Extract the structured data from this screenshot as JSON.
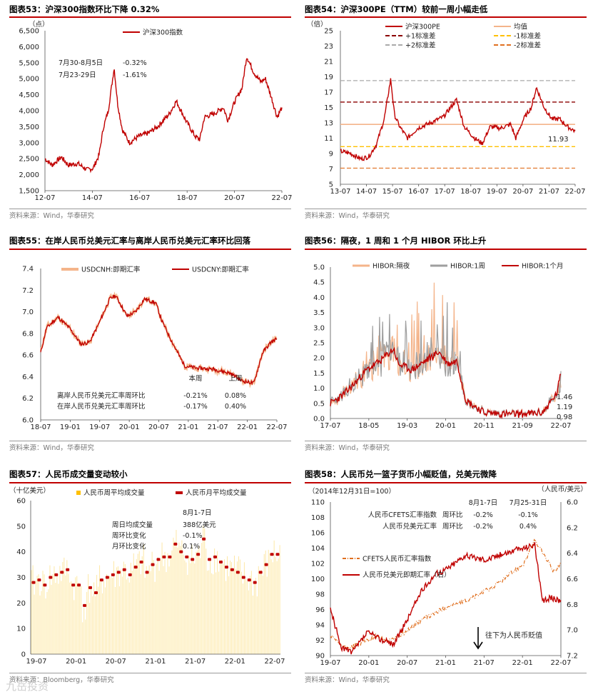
{
  "footer_watermark": "九岳投资",
  "colors": {
    "red": "#c00000",
    "peach": "#f4b48a",
    "grey": "#9e9e9e",
    "gold": "#ffc000",
    "darkred": "#8b0000",
    "orange": "#e07020"
  },
  "chart_data": [
    {
      "id": "c53",
      "type": "line",
      "title": "图表53：沪深300指数环比下降 0.32%",
      "source": "资料来源：Wind，华泰研究",
      "ylabel": "（点）",
      "ylim": [
        1500,
        6500
      ],
      "yticks": [
        "6,500",
        "6,000",
        "5,500",
        "5,000",
        "4,500",
        "4,000",
        "3,500",
        "3,000",
        "2,500",
        "2,000",
        "1,500"
      ],
      "xticks": [
        "12-07",
        "14-07",
        "16-07",
        "18-07",
        "20-07",
        "22-07"
      ],
      "legend": [
        "沪深300指数"
      ],
      "annotations": {
        "row1_label": "7月30-8月5日",
        "row1_value": "-0.32%",
        "row2_label": "7月23-29日",
        "row2_value": "-1.61%"
      },
      "series": [
        {
          "name": "沪深300指数",
          "x": [
            2012.5,
            2012.8,
            2013.2,
            2013.5,
            2013.9,
            2014.3,
            2014.55,
            2014.8,
            2015.0,
            2015.2,
            2015.45,
            2015.6,
            2015.8,
            2016.1,
            2016.5,
            2016.9,
            2017.3,
            2017.8,
            2018.1,
            2018.5,
            2018.9,
            2019.1,
            2019.3,
            2019.7,
            2020.1,
            2020.3,
            2020.6,
            2020.9,
            2021.1,
            2021.4,
            2021.7,
            2021.9,
            2022.2,
            2022.4,
            2022.6
          ],
          "values": [
            2500,
            2300,
            2550,
            2300,
            2350,
            2150,
            2200,
            2600,
            3500,
            4000,
            5350,
            4200,
            3400,
            3000,
            3200,
            3300,
            3500,
            3900,
            4300,
            3700,
            3200,
            3100,
            3800,
            3900,
            4100,
            3700,
            4300,
            4700,
            5700,
            5200,
            4900,
            5000,
            4300,
            3800,
            4100
          ]
        }
      ]
    },
    {
      "id": "c54",
      "type": "line",
      "title": "图表54：沪深300PE（TTM）较前一周小幅走低",
      "source": "资料来源：Wind，华泰研究",
      "ylabel": "（倍）",
      "ylim": [
        5,
        25
      ],
      "yticks": [
        "25",
        "23",
        "21",
        "19",
        "17",
        "15",
        "13",
        "11",
        "9",
        "7",
        "5"
      ],
      "xticks": [
        "13-07",
        "14-07",
        "15-07",
        "16-07",
        "17-07",
        "18-07",
        "19-07",
        "20-07",
        "21-07",
        "22-07"
      ],
      "legend": [
        "沪深300PE",
        "均值",
        "+1标准差",
        "-1标准差",
        "+2标准差",
        "-2标准差"
      ],
      "end_label": "11.93",
      "reference_lines": {
        "mean": 12.8,
        "plus1": 15.7,
        "minus1": 9.9,
        "plus2": 18.5,
        "minus2": 7.1
      },
      "series": [
        {
          "name": "沪深300PE",
          "x": [
            2013.5,
            2013.9,
            2014.3,
            2014.6,
            2014.9,
            2015.2,
            2015.45,
            2015.6,
            2015.8,
            2016.1,
            2016.5,
            2017.0,
            2017.5,
            2018.0,
            2018.3,
            2018.7,
            2019.0,
            2019.3,
            2019.7,
            2020.1,
            2020.3,
            2020.6,
            2020.9,
            2021.1,
            2021.4,
            2021.7,
            2022.0,
            2022.3,
            2022.6
          ],
          "values": [
            9.3,
            9.0,
            8.3,
            8.6,
            10.2,
            13.5,
            18.7,
            14.0,
            12.5,
            11.0,
            12.3,
            13.0,
            13.8,
            16.0,
            12.5,
            11.0,
            10.3,
            12.5,
            12.3,
            12.8,
            11.0,
            13.5,
            15.0,
            17.6,
            15.0,
            13.5,
            13.5,
            12.5,
            11.93
          ]
        }
      ]
    },
    {
      "id": "c55",
      "type": "line",
      "title": "图表55：在岸人民币兑美元汇率与离岸人民币兑美元汇率环比回落",
      "source": "资料来源：Wind，华泰研究",
      "ylim": [
        6.0,
        7.4
      ],
      "yticks": [
        "7.4",
        "7.2",
        "7.0",
        "6.8",
        "6.6",
        "6.4",
        "6.2",
        "6.0"
      ],
      "xticks": [
        "18-07",
        "19-01",
        "19-07",
        "20-01",
        "20-07",
        "21-01",
        "21-07",
        "22-01",
        "22-07"
      ],
      "legend": [
        "USDCNH:即期汇率",
        "USDCNY:即期汇率"
      ],
      "table": {
        "header_this": "本周",
        "header_last": "上周",
        "rows": [
          {
            "label": "离岸人民币兑美元汇率周环比",
            "this": "-0.21%",
            "last": "0.08%"
          },
          {
            "label": "在岸人民币兑美元汇率周环比",
            "this": "-0.17%",
            "last": "0.40%"
          }
        ]
      },
      "series": [
        {
          "name": "USDCNY:即期汇率",
          "x": [
            2018.5,
            2018.6,
            2018.8,
            2019.0,
            2019.2,
            2019.35,
            2019.5,
            2019.7,
            2019.8,
            2020.0,
            2020.15,
            2020.3,
            2020.5,
            2020.6,
            2020.8,
            2021.0,
            2021.2,
            2021.5,
            2021.8,
            2022.0,
            2022.2,
            2022.35,
            2022.5,
            2022.6
          ],
          "values": [
            6.62,
            6.85,
            6.95,
            6.85,
            6.7,
            6.72,
            6.88,
            7.12,
            7.15,
            6.96,
            7.0,
            7.12,
            7.08,
            6.92,
            6.7,
            6.5,
            6.48,
            6.47,
            6.43,
            6.36,
            6.34,
            6.62,
            6.72,
            6.75
          ]
        }
      ]
    },
    {
      "id": "c56",
      "type": "line",
      "title": "图表56：隔夜，1 周和 1 个月 HIBOR 环比上升",
      "source": "资料来源：Wind，华泰研究",
      "ylim": [
        0,
        5.0
      ],
      "yticks": [
        "5.0",
        "4.5",
        "4.0",
        "3.5",
        "3.0",
        "2.5",
        "2.0",
        "1.5",
        "1.0",
        "0.5",
        "0.0"
      ],
      "xticks": [
        "17-07",
        "18-05",
        "19-03",
        "20-01",
        "20-11",
        "21-09",
        "22-07"
      ],
      "legend": [
        "HIBOR:隔夜",
        "HIBOR:1周",
        "HIBOR:1个月"
      ],
      "end_labels": {
        "1m": "1.46",
        "1w": "1.19",
        "overnight": "0.98"
      },
      "series": [
        {
          "name": "HIBOR:1个月",
          "x": [
            2017.5,
            2017.8,
            2018.0,
            2018.3,
            2018.6,
            2018.9,
            2019.0,
            2019.3,
            2019.6,
            2019.9,
            2020.1,
            2020.3,
            2020.5,
            2020.9,
            2021.3,
            2021.8,
            2022.2,
            2022.5,
            2022.6
          ],
          "values": [
            0.5,
            0.8,
            1.1,
            1.6,
            1.9,
            2.3,
            1.8,
            1.6,
            1.9,
            2.2,
            1.8,
            1.9,
            0.6,
            0.2,
            0.15,
            0.15,
            0.2,
            0.8,
            1.46
          ]
        }
      ]
    },
    {
      "id": "c57",
      "type": "bar",
      "title": "图表57：人民币成交量变动较小",
      "source": "资料来源：Bloomberg，华泰研究",
      "ylabel": "（十亿美元）",
      "ylim": [
        0,
        60
      ],
      "yticks": [
        "60",
        "50",
        "40",
        "30",
        "20",
        "10",
        "0"
      ],
      "xticks": [
        "19-07",
        "20-01",
        "20-07",
        "21-01",
        "21-07",
        "22-01",
        "22-07"
      ],
      "legend": [
        "人民币周平均成交量",
        "人民币月平均成交量"
      ],
      "annotation": {
        "period": "8月1-7日",
        "row1_label": "周日均成交量",
        "row1_value": "388亿美元",
        "row2_label": "周环比变化",
        "row2_value": "-0.1%",
        "row3_label": "月环比变化",
        "row3_value": "0.1%"
      },
      "monthly_values": [
        28,
        29,
        27,
        30,
        31,
        32,
        33,
        27,
        27,
        19,
        26,
        24,
        29,
        30,
        31,
        32,
        33,
        31,
        34,
        36,
        32,
        35,
        37,
        38,
        38,
        43,
        40,
        38,
        37,
        39,
        45,
        37,
        38,
        36,
        34,
        33,
        32,
        30,
        29,
        28,
        32,
        35,
        39,
        39
      ]
    },
    {
      "id": "c58",
      "type": "line",
      "title": "图表58：人民币兑一篮子货币小幅贬值，兑美元微降",
      "source": "资料来源：Wind，华泰研究",
      "subtitle_left": "（2014年12月31日=100）",
      "subtitle_right": "（人民币/美元）",
      "ylim": [
        90,
        110
      ],
      "yticks": [
        "110",
        "108",
        "106",
        "104",
        "102",
        "100",
        "98",
        "96",
        "94",
        "92",
        "90"
      ],
      "y2ticks": [
        "6.0",
        "6.2",
        "6.4",
        "6.6",
        "6.8",
        "7.0",
        "7.2"
      ],
      "xticks": [
        "19-07",
        "20-01",
        "20-07",
        "21-01",
        "21-07",
        "22-01",
        "22-07"
      ],
      "legend": [
        "CFETS人民币汇率指数",
        "人民币兑美元即期汇率（右）"
      ],
      "arrow_note": "往下为人民币贬值",
      "table": {
        "col1": "8月1-7日",
        "col2": "7月25-31日",
        "rows": [
          {
            "label": "人民币CFETS汇率指数",
            "metric": "周环比",
            "v1": "-0.2%",
            "v2": "-0.1%"
          },
          {
            "label": "人民币兑美元汇率",
            "metric": "周环比",
            "v1": "-0.2%",
            "v2": "0.4%"
          }
        ]
      },
      "series": [
        {
          "name": "CFETS人民币汇率指数",
          "x": [
            2019.5,
            2019.7,
            2019.9,
            2020.1,
            2020.3,
            2020.5,
            2020.7,
            2020.9,
            2021.1,
            2021.3,
            2021.5,
            2021.7,
            2021.9,
            2022.1,
            2022.25,
            2022.35,
            2022.5,
            2022.6
          ],
          "values": [
            92.5,
            91.0,
            91.5,
            92.5,
            92.0,
            93.0,
            94.5,
            95.5,
            96.5,
            97.0,
            98.0,
            99.0,
            100.5,
            102.0,
            105.0,
            103.5,
            101.0,
            102.0
          ]
        }
      ]
    }
  ]
}
